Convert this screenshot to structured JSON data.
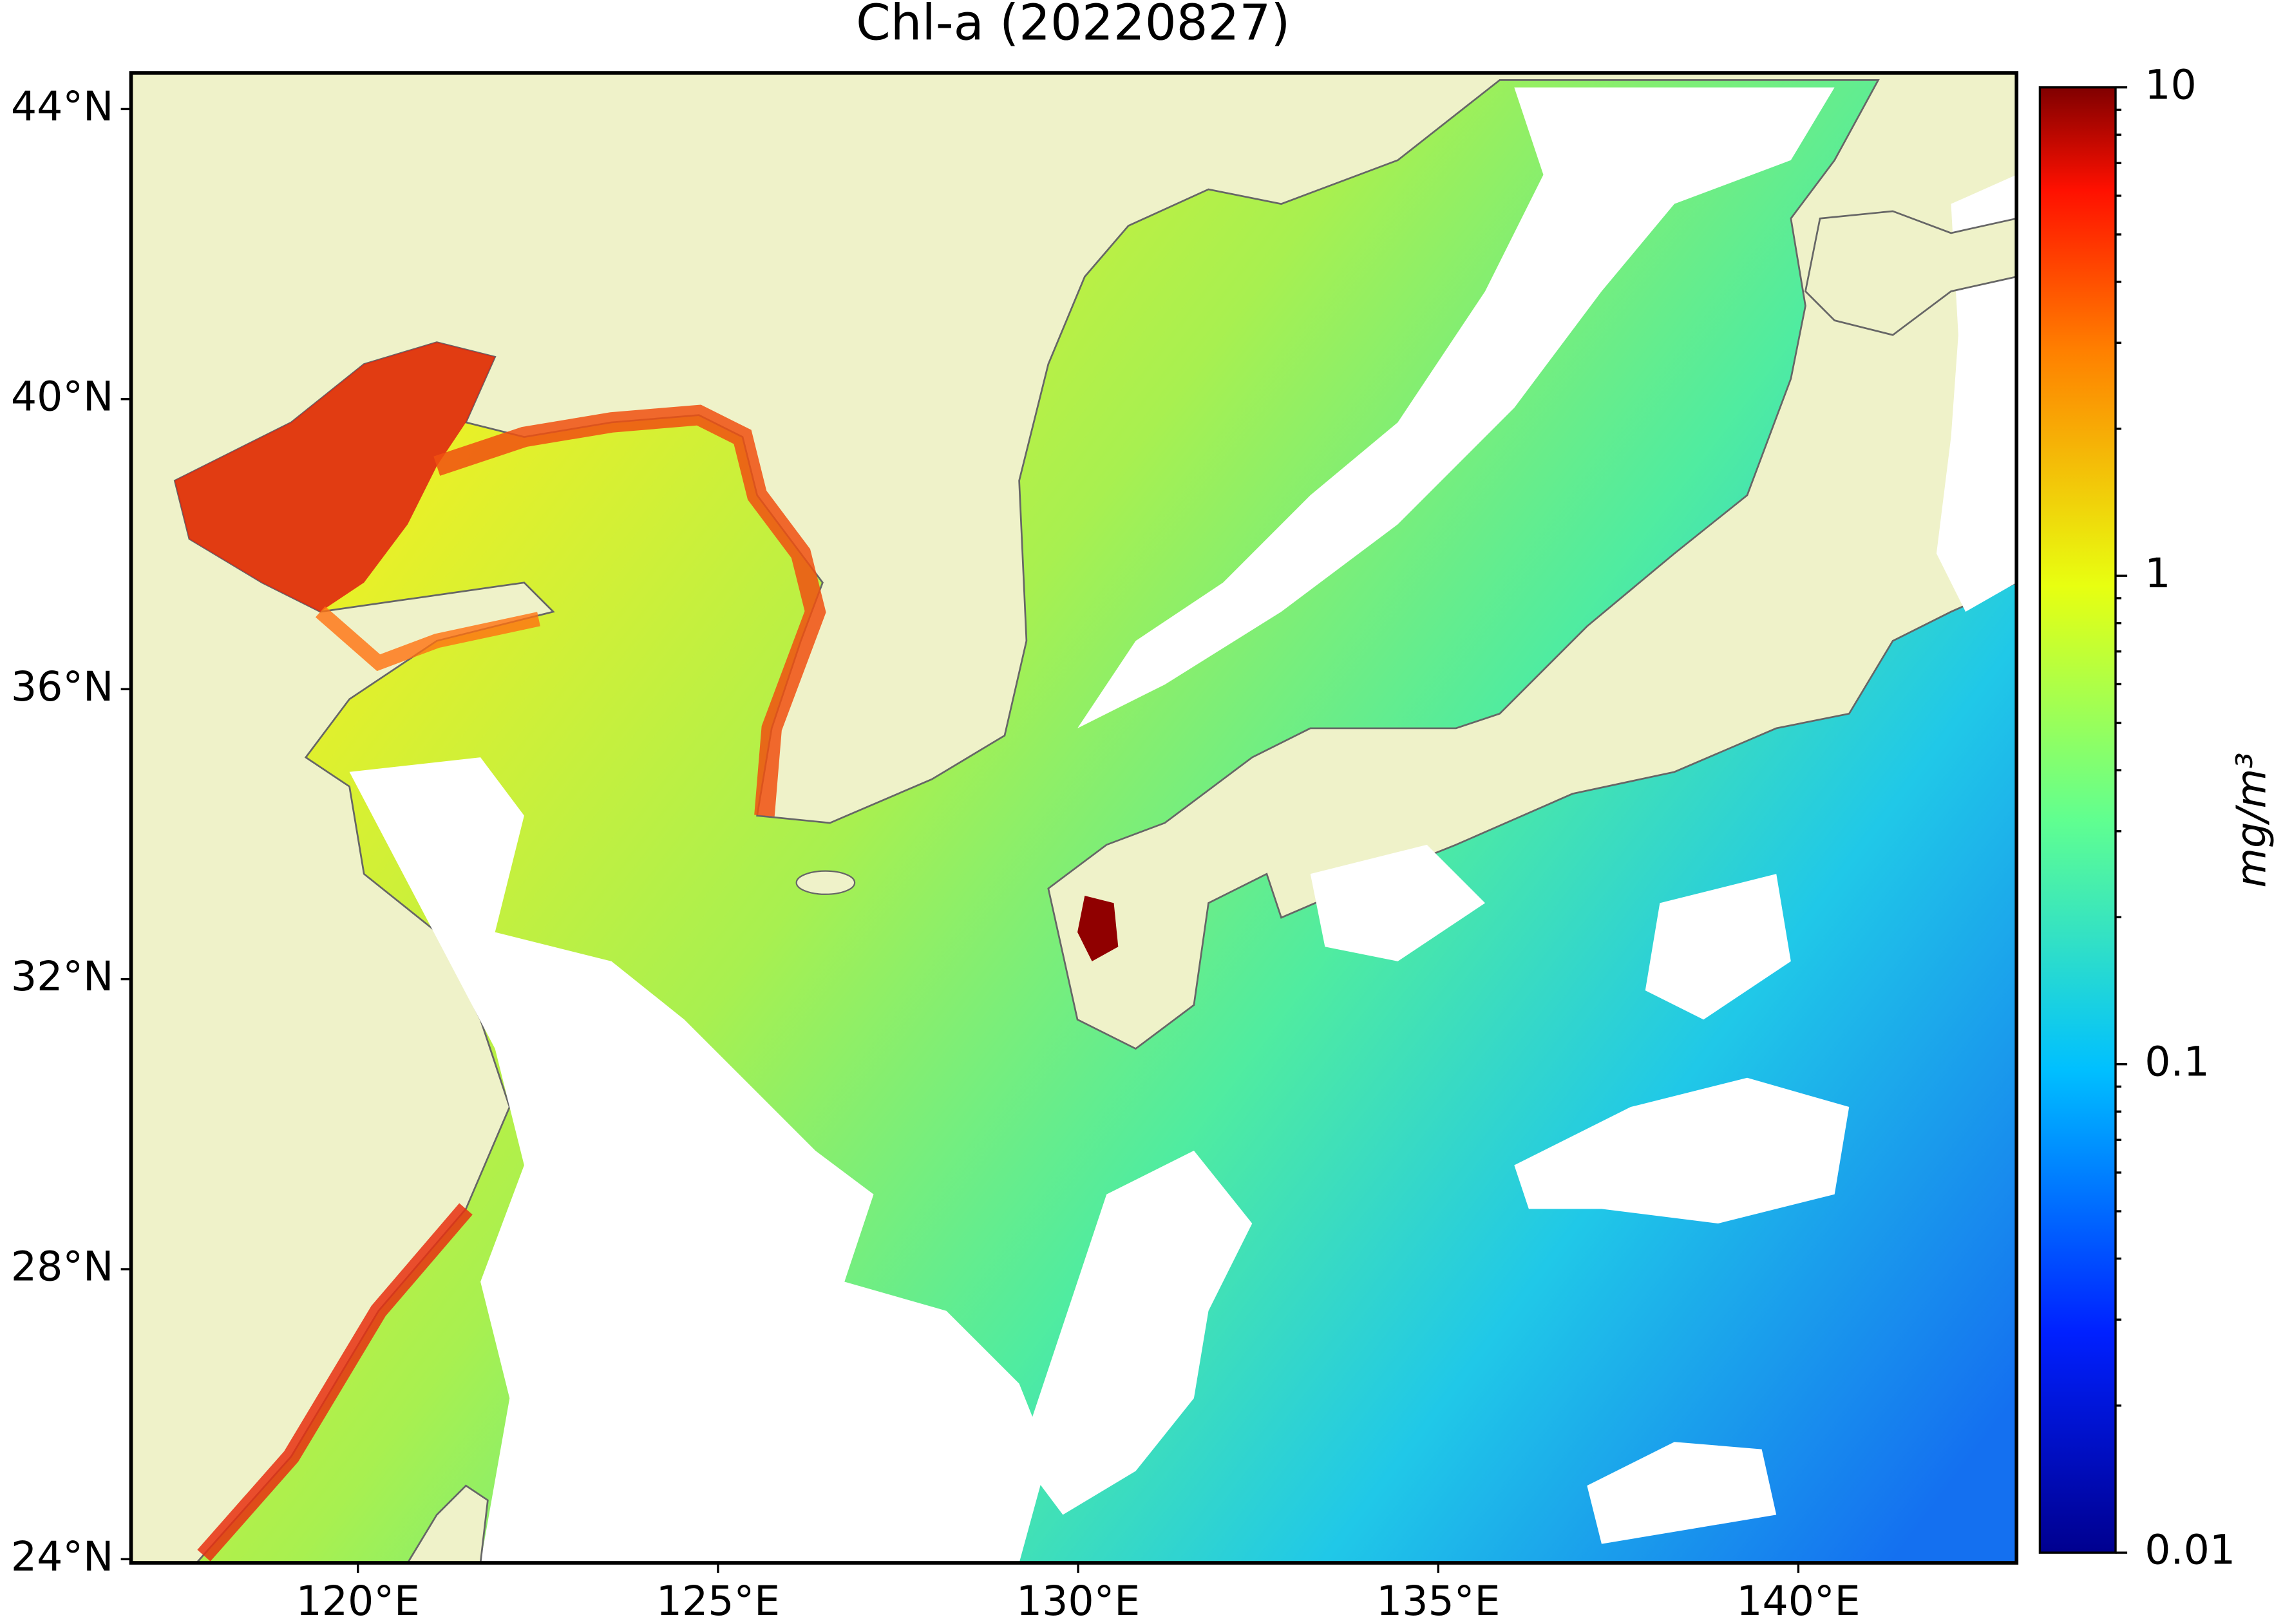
{
  "title": "Chl-a (20220827)",
  "map": {
    "xlim": [
      116.85,
      143.03
    ],
    "ylim": [
      23.95,
      44.5
    ],
    "xticks": [
      {
        "value": 120,
        "label": "120°E"
      },
      {
        "value": 125,
        "label": "125°E"
      },
      {
        "value": 130,
        "label": "130°E"
      },
      {
        "value": 135,
        "label": "135°E"
      },
      {
        "value": 140,
        "label": "140°E"
      }
    ],
    "yticks": [
      {
        "value": 24,
        "label": "24°N"
      },
      {
        "value": 28,
        "label": "28°N"
      },
      {
        "value": 32,
        "label": "32°N"
      },
      {
        "value": 36,
        "label": "36°N"
      },
      {
        "value": 40,
        "label": "40°N"
      },
      {
        "value": 44,
        "label": "44°N"
      }
    ]
  },
  "colorbar": {
    "label": "mg/m³",
    "scale": "log",
    "lim": [
      0.01,
      10
    ],
    "ticks": [
      0.01,
      0.1,
      1,
      10
    ],
    "minor_ticks": [
      0.02,
      0.03,
      0.04,
      0.05,
      0.06,
      0.07,
      0.08,
      0.09,
      0.2,
      0.3,
      0.4,
      0.5,
      0.6,
      0.7,
      0.8,
      0.9,
      2,
      3,
      4,
      5,
      6,
      7,
      8,
      9
    ]
  }
}
